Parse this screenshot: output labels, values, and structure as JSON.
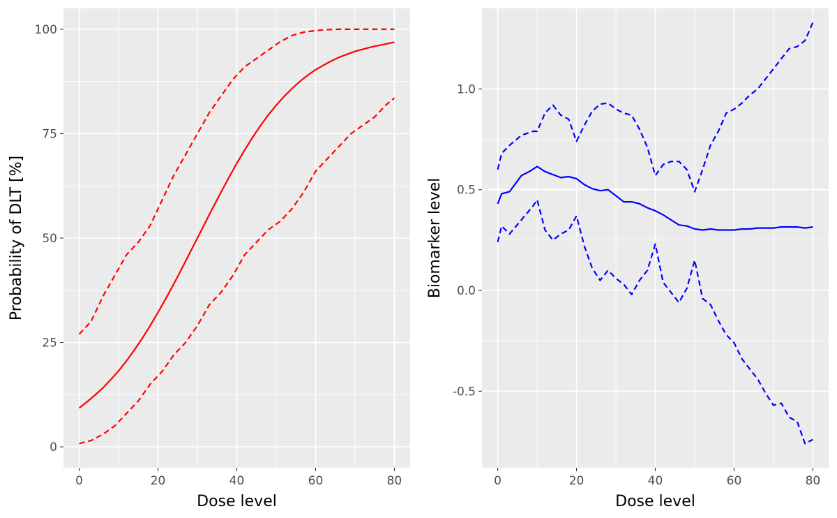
{
  "chart_data": [
    {
      "type": "line",
      "xlabel": "Dose level",
      "ylabel": "Probability of DLT [%]",
      "xlim": [
        -4,
        84
      ],
      "ylim": [
        -5,
        105
      ],
      "xticks": [
        0,
        20,
        40,
        60,
        80
      ],
      "yticks": [
        0,
        25,
        50,
        75,
        100
      ],
      "xtick_labels": [
        "0",
        "20",
        "40",
        "60",
        "80"
      ],
      "ytick_labels": [
        "0",
        "25",
        "50",
        "75",
        "100"
      ],
      "grid": true,
      "legend": "none",
      "series": [
        {
          "color": "#ff0000",
          "linestyle": "solid",
          "points": [
            [
              0,
              9.3
            ],
            [
              2,
              10.8
            ],
            [
              4,
              12.4
            ],
            [
              6,
              14.1
            ],
            [
              8,
              16.1
            ],
            [
              10,
              18.2
            ],
            [
              12,
              20.6
            ],
            [
              14,
              23.2
            ],
            [
              16,
              26.0
            ],
            [
              18,
              29.0
            ],
            [
              20,
              32.2
            ],
            [
              22,
              35.5
            ],
            [
              24,
              39.0
            ],
            [
              26,
              42.6
            ],
            [
              28,
              46.3
            ],
            [
              30,
              50.0
            ],
            [
              32,
              53.7
            ],
            [
              34,
              57.4
            ],
            [
              36,
              61.0
            ],
            [
              38,
              64.5
            ],
            [
              40,
              67.9
            ],
            [
              42,
              71.1
            ],
            [
              44,
              74.1
            ],
            [
              46,
              76.9
            ],
            [
              48,
              79.5
            ],
            [
              50,
              81.8
            ],
            [
              52,
              83.9
            ],
            [
              54,
              85.8
            ],
            [
              56,
              87.5
            ],
            [
              58,
              89.0
            ],
            [
              60,
              90.3
            ],
            [
              62,
              91.4
            ],
            [
              64,
              92.4
            ],
            [
              66,
              93.3
            ],
            [
              68,
              94.0
            ],
            [
              70,
              94.7
            ],
            [
              72,
              95.2
            ],
            [
              74,
              95.7
            ],
            [
              76,
              96.1
            ],
            [
              78,
              96.5
            ],
            [
              80,
              96.9
            ]
          ]
        },
        {
          "color": "#ff0000",
          "linestyle": "dashed",
          "points": [
            [
              0,
              27
            ],
            [
              3,
              30
            ],
            [
              6,
              36
            ],
            [
              9,
              41
            ],
            [
              12,
              46
            ],
            [
              15,
              49
            ],
            [
              18,
              53
            ],
            [
              21,
              59
            ],
            [
              24,
              65
            ],
            [
              27,
              70
            ],
            [
              30,
              75
            ],
            [
              33,
              80
            ],
            [
              36,
              84
            ],
            [
              39,
              88
            ],
            [
              42,
              91
            ],
            [
              45,
              93
            ],
            [
              48,
              95
            ],
            [
              51,
              97
            ],
            [
              54,
              98.5
            ],
            [
              57,
              99.3
            ],
            [
              60,
              99.7
            ],
            [
              63,
              99.9
            ],
            [
              66,
              100
            ],
            [
              70,
              100
            ],
            [
              75,
              100
            ],
            [
              80,
              100
            ]
          ]
        },
        {
          "color": "#ff0000",
          "linestyle": "dashed",
          "points": [
            [
              0,
              0.8
            ],
            [
              3,
              1.5
            ],
            [
              6,
              3
            ],
            [
              9,
              5
            ],
            [
              12,
              8
            ],
            [
              15,
              11
            ],
            [
              18,
              15
            ],
            [
              21,
              18
            ],
            [
              24,
              22
            ],
            [
              27,
              25
            ],
            [
              30,
              29
            ],
            [
              33,
              34
            ],
            [
              36,
              37
            ],
            [
              39,
              41
            ],
            [
              42,
              46
            ],
            [
              45,
              49
            ],
            [
              48,
              52
            ],
            [
              51,
              54
            ],
            [
              54,
              57
            ],
            [
              57,
              61
            ],
            [
              60,
              66
            ],
            [
              63,
              69
            ],
            [
              66,
              72
            ],
            [
              69,
              75
            ],
            [
              72,
              77
            ],
            [
              75,
              79
            ],
            [
              78,
              82
            ],
            [
              80,
              83.5
            ]
          ]
        }
      ]
    },
    {
      "type": "line",
      "xlabel": "Dose level",
      "ylabel": "Biomarker level",
      "xlim": [
        -4,
        84
      ],
      "ylim": [
        -0.88,
        1.4
      ],
      "xticks": [
        0,
        20,
        40,
        60,
        80
      ],
      "yticks": [
        -0.5,
        0.0,
        0.5,
        1.0
      ],
      "xtick_labels": [
        "0",
        "20",
        "40",
        "60",
        "80"
      ],
      "ytick_labels": [
        "-0.5",
        "0.0",
        "0.5",
        "1.0"
      ],
      "grid": true,
      "legend": "none",
      "series": [
        {
          "color": "#0000ff",
          "linestyle": "solid",
          "points": [
            [
              0,
              0.43
            ],
            [
              1,
              0.48
            ],
            [
              3,
              0.49
            ],
            [
              6,
              0.57
            ],
            [
              8,
              0.59
            ],
            [
              10,
              0.615
            ],
            [
              12,
              0.59
            ],
            [
              14,
              0.575
            ],
            [
              16,
              0.56
            ],
            [
              18,
              0.565
            ],
            [
              20,
              0.555
            ],
            [
              22,
              0.525
            ],
            [
              24,
              0.505
            ],
            [
              26,
              0.495
            ],
            [
              28,
              0.5
            ],
            [
              30,
              0.47
            ],
            [
              32,
              0.44
            ],
            [
              34,
              0.44
            ],
            [
              36,
              0.43
            ],
            [
              38,
              0.41
            ],
            [
              40,
              0.395
            ],
            [
              42,
              0.375
            ],
            [
              44,
              0.35
            ],
            [
              46,
              0.325
            ],
            [
              48,
              0.32
            ],
            [
              50,
              0.305
            ],
            [
              52,
              0.3
            ],
            [
              54,
              0.305
            ],
            [
              56,
              0.3
            ],
            [
              58,
              0.3
            ],
            [
              60,
              0.3
            ],
            [
              62,
              0.305
            ],
            [
              64,
              0.305
            ],
            [
              66,
              0.31
            ],
            [
              68,
              0.31
            ],
            [
              70,
              0.31
            ],
            [
              72,
              0.315
            ],
            [
              74,
              0.315
            ],
            [
              76,
              0.315
            ],
            [
              78,
              0.31
            ],
            [
              80,
              0.315
            ]
          ]
        },
        {
          "color": "#0000ff",
          "linestyle": "dashed",
          "points": [
            [
              0,
              0.6
            ],
            [
              1,
              0.68
            ],
            [
              3,
              0.72
            ],
            [
              6,
              0.77
            ],
            [
              9,
              0.79
            ],
            [
              10,
              0.79
            ],
            [
              12,
              0.88
            ],
            [
              14,
              0.92
            ],
            [
              16,
              0.87
            ],
            [
              18,
              0.85
            ],
            [
              20,
              0.74
            ],
            [
              22,
              0.82
            ],
            [
              24,
              0.89
            ],
            [
              26,
              0.925
            ],
            [
              28,
              0.93
            ],
            [
              30,
              0.9
            ],
            [
              32,
              0.88
            ],
            [
              34,
              0.87
            ],
            [
              36,
              0.8
            ],
            [
              38,
              0.71
            ],
            [
              40,
              0.57
            ],
            [
              42,
              0.625
            ],
            [
              44,
              0.64
            ],
            [
              46,
              0.64
            ],
            [
              48,
              0.6
            ],
            [
              50,
              0.49
            ],
            [
              52,
              0.6
            ],
            [
              54,
              0.72
            ],
            [
              56,
              0.79
            ],
            [
              58,
              0.88
            ],
            [
              60,
              0.9
            ],
            [
              62,
              0.93
            ],
            [
              64,
              0.97
            ],
            [
              66,
              1.0
            ],
            [
              68,
              1.05
            ],
            [
              70,
              1.1
            ],
            [
              72,
              1.15
            ],
            [
              74,
              1.2
            ],
            [
              76,
              1.21
            ],
            [
              78,
              1.24
            ],
            [
              80,
              1.33
            ]
          ]
        },
        {
          "color": "#0000ff",
          "linestyle": "dashed",
          "points": [
            [
              0,
              0.24
            ],
            [
              1,
              0.32
            ],
            [
              3,
              0.28
            ],
            [
              6,
              0.35
            ],
            [
              9,
              0.42
            ],
            [
              10,
              0.45
            ],
            [
              12,
              0.3
            ],
            [
              14,
              0.25
            ],
            [
              16,
              0.28
            ],
            [
              18,
              0.3
            ],
            [
              20,
              0.37
            ],
            [
              22,
              0.22
            ],
            [
              24,
              0.11
            ],
            [
              26,
              0.05
            ],
            [
              28,
              0.1
            ],
            [
              30,
              0.06
            ],
            [
              32,
              0.03
            ],
            [
              34,
              -0.02
            ],
            [
              36,
              0.05
            ],
            [
              38,
              0.1
            ],
            [
              40,
              0.23
            ],
            [
              42,
              0.04
            ],
            [
              44,
              -0.01
            ],
            [
              46,
              -0.06
            ],
            [
              48,
              0.01
            ],
            [
              50,
              0.15
            ],
            [
              52,
              -0.04
            ],
            [
              54,
              -0.07
            ],
            [
              56,
              -0.15
            ],
            [
              58,
              -0.22
            ],
            [
              60,
              -0.26
            ],
            [
              62,
              -0.34
            ],
            [
              64,
              -0.39
            ],
            [
              66,
              -0.44
            ],
            [
              68,
              -0.51
            ],
            [
              70,
              -0.57
            ],
            [
              72,
              -0.56
            ],
            [
              74,
              -0.63
            ],
            [
              76,
              -0.65
            ],
            [
              78,
              -0.76
            ],
            [
              80,
              -0.74
            ]
          ]
        }
      ]
    }
  ]
}
